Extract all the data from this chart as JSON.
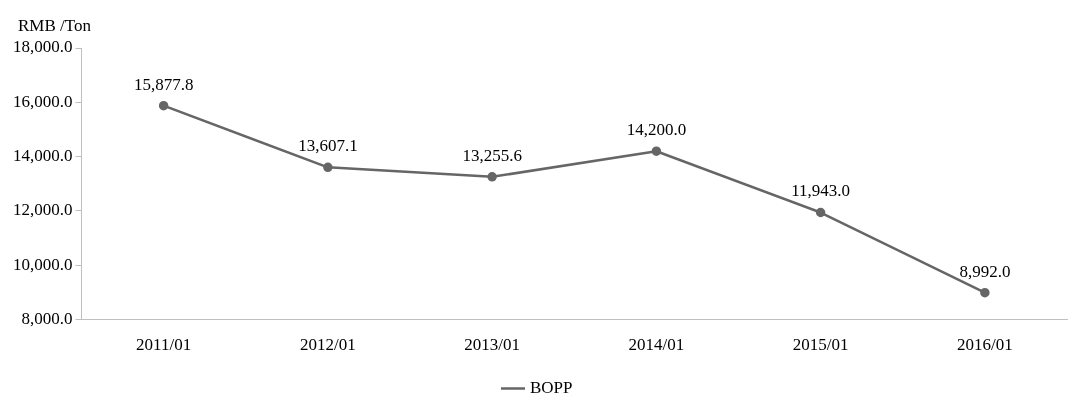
{
  "chart_data": {
    "type": "line",
    "ylabel": "RMB /Ton",
    "categories": [
      "2011/01",
      "2012/01",
      "2013/01",
      "2014/01",
      "2015/01",
      "2016/01"
    ],
    "series": [
      {
        "name": "BOPP",
        "color": "#666666",
        "values": [
          15877.8,
          13607.1,
          13255.6,
          14200.0,
          11943.0,
          8992.0
        ],
        "value_labels": [
          "15,877.8",
          "13,607.1",
          "13,255.6",
          "14,200.0",
          "11,943.0",
          "8,992.0"
        ]
      }
    ],
    "ylim": [
      8000,
      18000
    ],
    "yticks": [
      {
        "value": 8000,
        "label": "8,000.0"
      },
      {
        "value": 10000,
        "label": "10,000.0"
      },
      {
        "value": 12000,
        "label": "12,000.0"
      },
      {
        "value": 14000,
        "label": "14,000.0"
      },
      {
        "value": 16000,
        "label": "16,000.0"
      },
      {
        "value": 18000,
        "label": "18,000.0"
      }
    ],
    "grid": false,
    "legend": "bottom",
    "marker": "circle",
    "line_style": "solid"
  }
}
